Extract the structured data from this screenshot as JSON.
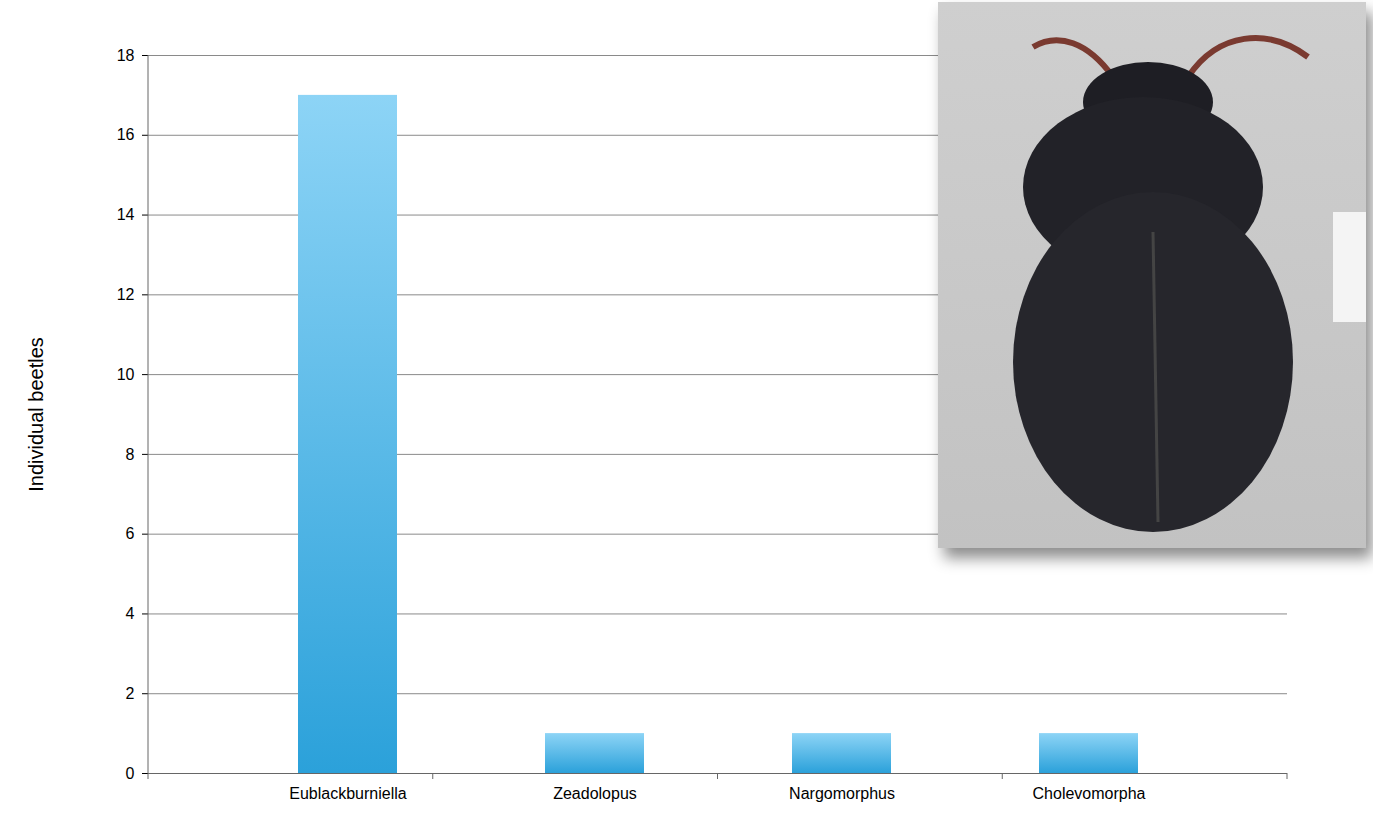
{
  "chart_data": {
    "type": "bar",
    "categories": [
      "Eublackburniella",
      "Zeadolopus",
      "Nargomorphus",
      "Cholevomorpha"
    ],
    "values": [
      17,
      1,
      1,
      1
    ],
    "color": "#2fb0ee",
    "y_label": "Individual beetles",
    "ylim": [
      0,
      18
    ],
    "yticks": [
      0,
      2,
      4,
      6,
      8,
      10,
      12,
      14,
      16,
      18
    ],
    "grid": true
  }
}
